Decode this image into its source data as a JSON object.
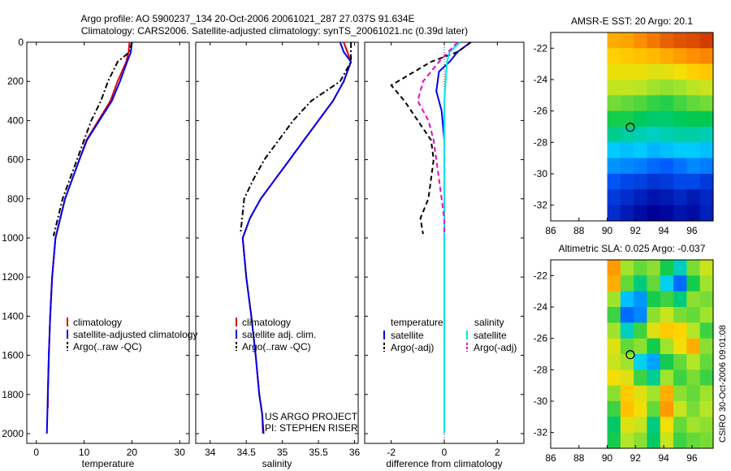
{
  "titles": {
    "line1": "Argo profile: AO 5900237_134 20-Oct-2006 20061021_287 27.037S 91.634E",
    "line2": "Climatology: CARS2006. Satellite-adjusted climatology: synTS_20061021.nc (0.39d later)"
  },
  "footer": {
    "project": "US ARGO PROJECT",
    "pi": "PI: STEPHEN RISER",
    "stamp": "CSIRO 30-Oct-2006 09:01:08"
  },
  "colors": {
    "climatology": "#e00000",
    "satellite": "#0000ee",
    "argo": "#000000",
    "sat_salinity": "#00e5ee",
    "argo_salinity": "#ee00cc"
  },
  "chart_data": [
    {
      "type": "line",
      "id": "temperature",
      "xlabel": "temperature",
      "ylabel": "",
      "xlim": [
        -2,
        32
      ],
      "ylim": [
        2050,
        0
      ],
      "xticks": [
        0,
        10,
        20,
        30
      ],
      "yticks": [
        0,
        200,
        400,
        600,
        800,
        1000,
        1200,
        1400,
        1600,
        1800,
        2000
      ],
      "legend": {
        "position": "lower-center",
        "entries": [
          "climatology",
          "satellite-adjusted climatology",
          "Argo(..raw -QC)"
        ]
      },
      "series": [
        {
          "name": "climatology",
          "style": "solid",
          "color": "climatology",
          "x": [
            19.5,
            19.3,
            18.8,
            17.0,
            15.5,
            13.0,
            10.5,
            9.0,
            7.5,
            6.0,
            5.0,
            4.0,
            3.3,
            2.9,
            2.6,
            2.4,
            2.4
          ],
          "y": [
            0,
            50,
            100,
            200,
            300,
            400,
            500,
            600,
            700,
            800,
            900,
            1000,
            1200,
            1400,
            1600,
            1800,
            1870
          ]
        },
        {
          "name": "satellite-adjusted climatology",
          "style": "solid",
          "color": "satellite",
          "x": [
            20.0,
            19.8,
            19.0,
            17.5,
            15.8,
            13.2,
            10.6,
            9.0,
            7.5,
            6.0,
            5.0,
            4.0,
            3.3,
            2.9,
            2.6,
            2.4,
            2.2
          ],
          "y": [
            0,
            50,
            100,
            200,
            300,
            400,
            500,
            600,
            700,
            800,
            900,
            1000,
            1200,
            1400,
            1600,
            1800,
            2000
          ]
        },
        {
          "name": "Argo(..raw -QC)",
          "style": "dashdot",
          "color": "argo",
          "x": [
            20.0,
            19.5,
            17.0,
            15.0,
            13.5,
            11.5,
            10.0,
            8.5,
            7.0,
            5.5,
            4.5,
            3.6
          ],
          "y": [
            0,
            50,
            100,
            200,
            300,
            400,
            500,
            600,
            700,
            800,
            900,
            990
          ]
        }
      ]
    },
    {
      "type": "line",
      "id": "salinity",
      "xlabel": "salinity",
      "ylabel": "",
      "xlim": [
        33.8,
        36.05
      ],
      "ylim": [
        2050,
        0
      ],
      "xticks": [
        34,
        34.5,
        35,
        35.5,
        36
      ],
      "yticks": [
        0,
        200,
        400,
        600,
        800,
        1000,
        1200,
        1400,
        1600,
        1800,
        2000
      ],
      "legend": {
        "position": "lower-center",
        "entries": [
          "climatology",
          "satellite adj. clim.",
          "Argo(..raw -QC)"
        ]
      },
      "series": [
        {
          "name": "climatology",
          "style": "solid",
          "color": "climatology",
          "x": [
            35.85,
            35.9,
            35.95,
            35.85,
            35.7,
            35.5,
            35.3,
            35.1,
            34.9,
            34.7,
            34.55,
            34.45,
            34.5,
            34.57,
            34.63,
            34.68,
            34.72,
            34.73
          ],
          "y": [
            0,
            50,
            100,
            200,
            300,
            400,
            500,
            600,
            700,
            800,
            900,
            1000,
            1200,
            1400,
            1600,
            1800,
            1900,
            2000
          ]
        },
        {
          "name": "satellite adj. clim.",
          "style": "solid",
          "color": "satellite",
          "x": [
            35.8,
            35.85,
            35.95,
            35.85,
            35.7,
            35.5,
            35.3,
            35.1,
            34.9,
            34.7,
            34.55,
            34.45,
            34.5,
            34.57,
            34.63,
            34.68,
            34.72,
            34.74
          ],
          "y": [
            0,
            50,
            100,
            200,
            300,
            400,
            500,
            600,
            700,
            800,
            900,
            1000,
            1200,
            1400,
            1600,
            1800,
            1900,
            2000
          ]
        },
        {
          "name": "Argo(..raw -QC)",
          "style": "dashdot",
          "color": "argo",
          "x": [
            35.95,
            35.95,
            35.8,
            35.4,
            35.15,
            34.95,
            34.75,
            34.6,
            34.47,
            34.42
          ],
          "y": [
            0,
            100,
            200,
            300,
            400,
            500,
            600,
            700,
            800,
            980
          ]
        }
      ]
    },
    {
      "type": "line",
      "id": "difference",
      "xlabel": "difference from climatology",
      "ylabel": "",
      "xlim": [
        -3,
        3
      ],
      "ylim": [
        2050,
        0
      ],
      "xticks": [
        -2,
        0,
        2
      ],
      "yticks": [
        0,
        200,
        400,
        600,
        800,
        1000,
        1200,
        1400,
        1600,
        1800,
        2000
      ],
      "legend": {
        "position": "lower-center",
        "columns": [
          "temperature",
          "salinity"
        ],
        "entries": [
          "satellite",
          "Argo(-adj)",
          "satellite",
          "Argo(-adj)"
        ]
      },
      "series": [
        {
          "name": "temperature satellite",
          "style": "solid",
          "color": "satellite",
          "x": [
            1.0,
            0.5,
            0.2,
            -0.2,
            -0.3,
            -0.1,
            0.0,
            0.0,
            0.0,
            0.0,
            0.0
          ],
          "y": [
            0,
            50,
            100,
            150,
            250,
            350,
            500,
            700,
            1000,
            1200,
            1450
          ]
        },
        {
          "name": "temperature Argo(-adj)",
          "style": "dashed",
          "color": "argo",
          "x": [
            1.0,
            0.5,
            -0.5,
            -2.0,
            -1.5,
            -1.0,
            -0.5,
            -0.4,
            -0.6,
            -0.9,
            -0.8
          ],
          "y": [
            0,
            50,
            100,
            220,
            300,
            400,
            500,
            600,
            800,
            900,
            980
          ]
        },
        {
          "name": "salinity satellite",
          "style": "solid",
          "color": "sat_salinity",
          "x": [
            0.6,
            0.2,
            0.1,
            0.05,
            0.0,
            0.0,
            0.0,
            0.0,
            0.0,
            0.0,
            0.0,
            0.0
          ],
          "y": [
            0,
            50,
            100,
            200,
            300,
            500,
            700,
            900,
            1200,
            1500,
            1800,
            2000
          ]
        },
        {
          "name": "salinity Argo(-adj)",
          "style": "dashed",
          "color": "argo_salinity",
          "x": [
            0.5,
            -0.2,
            -0.8,
            -1.0,
            -0.6,
            -0.4,
            -0.3,
            -0.2,
            -0.1,
            0.0,
            0.0
          ],
          "y": [
            0,
            100,
            200,
            300,
            400,
            500,
            600,
            700,
            800,
            900,
            980
          ]
        }
      ]
    },
    {
      "type": "heatmap",
      "id": "sst-map",
      "title": "AMSR-E SST: 20 Argo: 20.1",
      "xlim": [
        86,
        97.5
      ],
      "ylim": [
        -33,
        -21
      ],
      "xticks": [
        86,
        88,
        90,
        92,
        94,
        96
      ],
      "yticks": [
        -32,
        -30,
        -28,
        -26,
        -24,
        -22
      ],
      "data_xrange": [
        90,
        97.5
      ],
      "marker": {
        "lon": 91.634,
        "lat": -27.037
      },
      "rows_north_to_south": [
        [
          22.8,
          22.9,
          23.2,
          23.5,
          23.8,
          24.0,
          24.1,
          24.3
        ],
        [
          22.3,
          22.4,
          22.5,
          22.6,
          22.8,
          23.0,
          23.2,
          23.3
        ],
        [
          21.9,
          21.9,
          21.9,
          21.7,
          21.8,
          22.0,
          22.3,
          22.4
        ],
        [
          21.4,
          21.4,
          21.3,
          21.1,
          21.0,
          21.1,
          21.3,
          21.5
        ],
        [
          20.8,
          20.7,
          20.6,
          20.4,
          20.3,
          20.5,
          20.7,
          20.8
        ],
        [
          20.2,
          20.2,
          20.0,
          19.9,
          19.9,
          20.0,
          20.1,
          20.1
        ],
        [
          19.7,
          19.6,
          19.5,
          19.4,
          19.5,
          19.6,
          19.6,
          19.5
        ],
        [
          19.0,
          18.9,
          19.0,
          18.8,
          18.9,
          19.0,
          19.0,
          18.9
        ],
        [
          18.5,
          18.4,
          18.3,
          18.1,
          18.0,
          18.2,
          18.4,
          18.3
        ],
        [
          17.9,
          17.7,
          17.6,
          17.4,
          17.5,
          17.7,
          17.7,
          17.5
        ],
        [
          17.5,
          17.3,
          17.1,
          16.9,
          17.0,
          17.2,
          17.0,
          17.2
        ],
        [
          17.3,
          17.0,
          16.8,
          16.6,
          16.7,
          16.9,
          16.8,
          17.1
        ]
      ],
      "color_range": [
        16.6,
        24.3
      ]
    },
    {
      "type": "heatmap",
      "id": "sla-map",
      "title": "Altimetric SLA: 0.025 Argo: -0.037",
      "xlim": [
        86,
        97.5
      ],
      "ylim": [
        -33,
        -21
      ],
      "xticks": [
        86,
        88,
        90,
        92,
        94,
        96
      ],
      "yticks": [
        -32,
        -30,
        -28,
        -26,
        -24,
        -22
      ],
      "data_xrange": [
        90,
        97.5
      ],
      "marker": {
        "lon": 91.634,
        "lat": -27.037
      },
      "rows_north_to_south": [
        [
          0.2,
          0.05,
          0.02,
          0.04,
          -0.02,
          -0.08,
          0.03,
          0.08
        ],
        [
          0.18,
          0.02,
          -0.05,
          0.02,
          -0.1,
          -0.18,
          -0.02,
          0.05
        ],
        [
          0.05,
          -0.12,
          -0.15,
          -0.02,
          0.0,
          -0.05,
          0.04,
          0.03
        ],
        [
          0.0,
          -0.18,
          -0.16,
          0.04,
          0.08,
          0.03,
          0.02,
          0.05
        ],
        [
          0.05,
          -0.08,
          0.0,
          0.1,
          0.15,
          0.14,
          0.06,
          0.0
        ],
        [
          0.1,
          0.02,
          0.04,
          -0.02,
          0.05,
          0.12,
          0.18,
          0.04
        ],
        [
          0.08,
          0.05,
          -0.1,
          -0.14,
          -0.02,
          0.02,
          0.06,
          0.02
        ],
        [
          0.12,
          0.1,
          0.0,
          -0.06,
          0.05,
          0.0,
          0.03,
          0.0
        ],
        [
          0.04,
          0.15,
          0.1,
          0.05,
          0.18,
          0.04,
          0.02,
          0.05
        ],
        [
          0.0,
          0.16,
          0.12,
          0.02,
          0.2,
          0.08,
          0.03,
          0.06
        ],
        [
          -0.04,
          0.1,
          0.08,
          -0.05,
          0.12,
          0.02,
          0.05,
          0.04
        ],
        [
          -0.02,
          0.06,
          0.04,
          -0.04,
          0.08,
          0.0,
          0.02,
          0.03
        ]
      ],
      "color_range": [
        -0.3,
        0.3
      ]
    }
  ]
}
